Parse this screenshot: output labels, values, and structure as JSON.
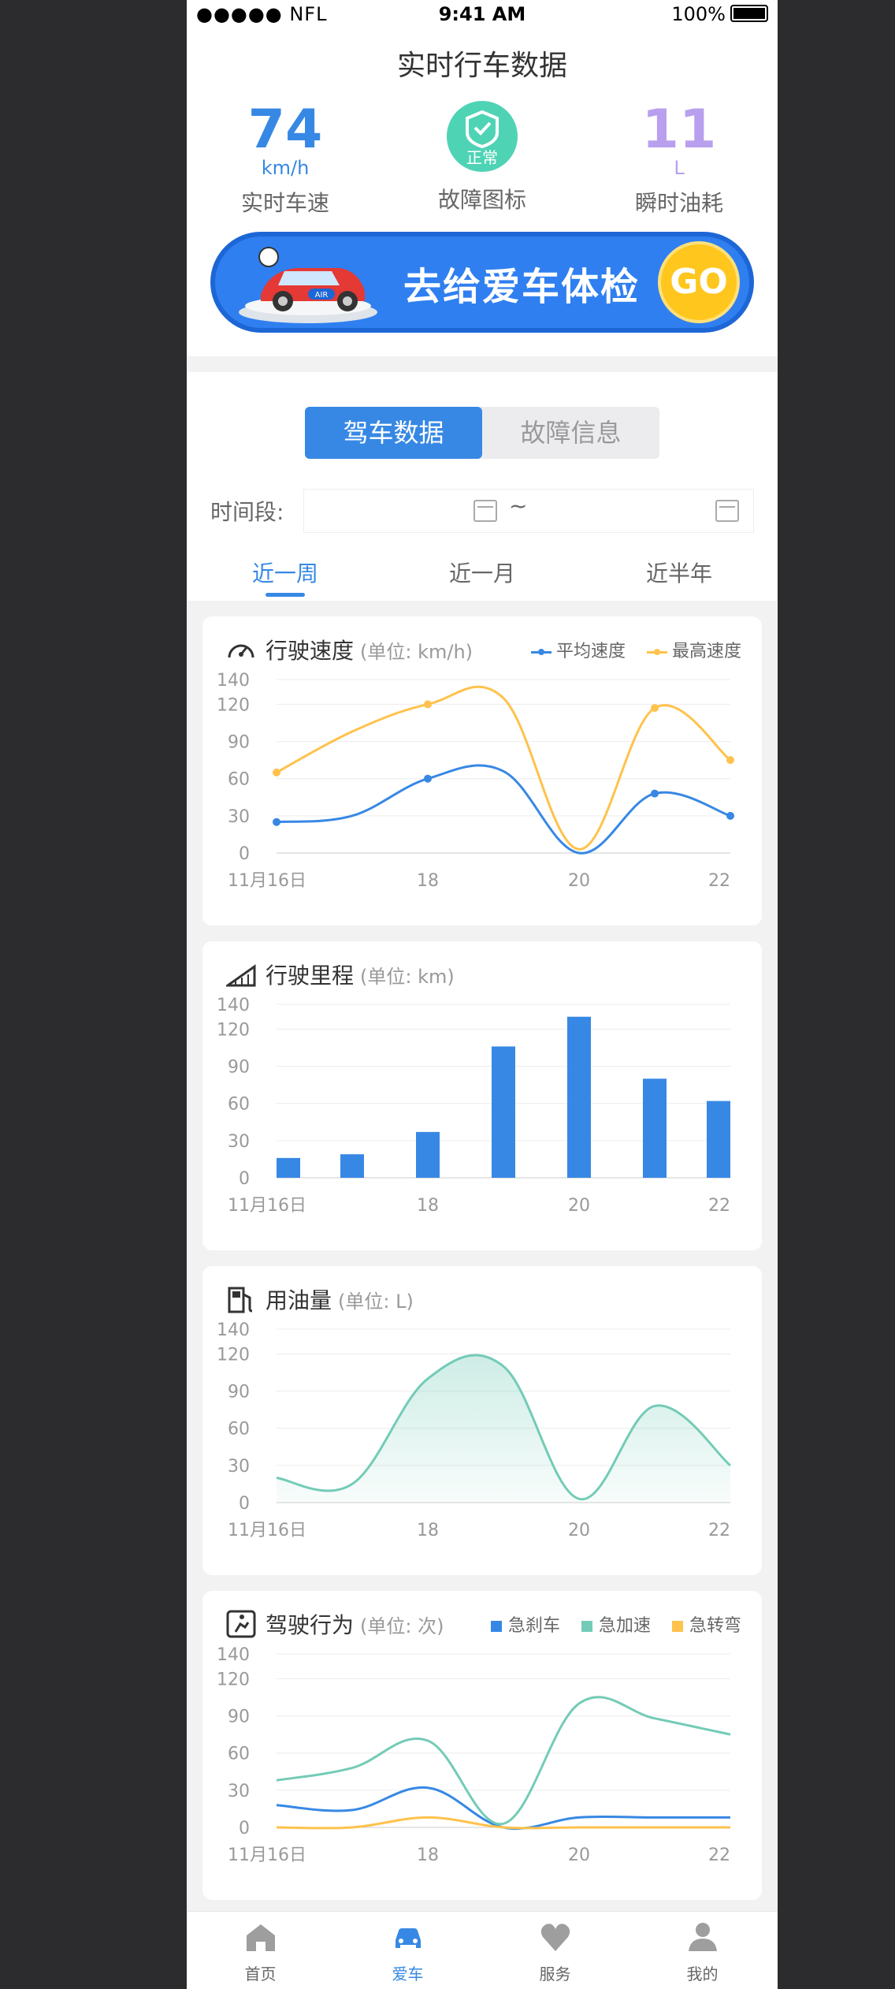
{
  "status": {
    "signal": "●●●●● NFL",
    "time": "9:41 AM",
    "battery": "100%"
  },
  "header": {
    "title": "实时行车数据"
  },
  "metrics": {
    "speed": {
      "value": "74",
      "unit": "km/h",
      "label": "实时车速"
    },
    "fault": {
      "badge": "正常",
      "label": "故障图标"
    },
    "fuel": {
      "value": "11",
      "unit": "L",
      "label": "瞬时油耗"
    }
  },
  "banner": {
    "text": "去给爱车体检",
    "go": "GO",
    "car_plate": "AIR"
  },
  "segment": {
    "active": "驾车数据",
    "inactive": "故障信息"
  },
  "range": {
    "label": "时间段:",
    "separator": "~"
  },
  "tabs": [
    "近一周",
    "近一月",
    "近半年"
  ],
  "colors": {
    "accent": "#3788e4",
    "orange": "#ffc24c",
    "teal": "#73cbb7",
    "fuel": "#b9a0ee"
  },
  "cards": {
    "speed": {
      "title": "行驶速度",
      "unit": "(单位: km/h)",
      "legend": [
        "平均速度",
        "最高速度"
      ]
    },
    "mileage": {
      "title": "行驶里程",
      "unit": "(单位: km)"
    },
    "fuel": {
      "title": "用油量",
      "unit": "(单位: L)"
    },
    "behavior": {
      "title": "驾驶行为",
      "unit": "(单位: 次)",
      "legend": [
        "急刹车",
        "急加速",
        "急转弯"
      ]
    }
  },
  "chart_data": [
    {
      "type": "line",
      "title": "行驶速度",
      "ylim": [
        0,
        140
      ],
      "yticks": [
        140,
        120,
        90,
        60,
        30,
        0
      ],
      "x": [
        16,
        17,
        18,
        19,
        20,
        21,
        22
      ],
      "xtick_labels": [
        "11月16日",
        "18",
        "20",
        "22"
      ],
      "xticks": [
        16,
        18,
        20,
        22
      ],
      "series": [
        {
          "name": "平均速度",
          "color": "#3788e4",
          "values": [
            25,
            30,
            60,
            66,
            0,
            48,
            30
          ],
          "markers": [
            16,
            18,
            21,
            22
          ]
        },
        {
          "name": "最高速度",
          "color": "#ffc24c",
          "values": [
            65,
            98,
            120,
            125,
            3,
            117,
            75
          ],
          "markers": [
            16,
            18,
            21,
            22
          ]
        }
      ]
    },
    {
      "type": "bar",
      "title": "行驶里程",
      "ylim": [
        0,
        140
      ],
      "yticks": [
        140,
        120,
        90,
        60,
        30,
        0
      ],
      "x": [
        16,
        17,
        18,
        19,
        20,
        21,
        22
      ],
      "xtick_labels": [
        "11月16日",
        "18",
        "20",
        "22"
      ],
      "xticks": [
        16,
        18,
        20,
        22
      ],
      "series": [
        {
          "color": "#3788e4",
          "values": [
            16,
            19,
            37,
            106,
            130,
            80,
            62
          ]
        }
      ]
    },
    {
      "type": "area",
      "title": "用油量",
      "ylim": [
        0,
        140
      ],
      "yticks": [
        140,
        120,
        90,
        60,
        30,
        0
      ],
      "x": [
        16,
        17,
        18,
        19,
        20,
        21,
        22
      ],
      "xtick_labels": [
        "11月16日",
        "18",
        "20",
        "22"
      ],
      "xticks": [
        16,
        18,
        20,
        22
      ],
      "series": [
        {
          "color": "#73cbb7",
          "values": [
            20,
            15,
            100,
            110,
            3,
            78,
            30
          ]
        }
      ]
    },
    {
      "type": "line",
      "title": "驾驶行为",
      "ylim": [
        0,
        140
      ],
      "yticks": [
        140,
        120,
        90,
        60,
        30,
        0
      ],
      "x": [
        16,
        17,
        18,
        19,
        20,
        21,
        22
      ],
      "xtick_labels": [
        "11月16日",
        "18",
        "20",
        "22"
      ],
      "xticks": [
        16,
        18,
        20,
        22
      ],
      "series": [
        {
          "name": "急刹车",
          "color": "#3788e4",
          "values": [
            18,
            14,
            32,
            0,
            8,
            8,
            8
          ]
        },
        {
          "name": "急加速",
          "color": "#73cbb7",
          "values": [
            38,
            48,
            70,
            3,
            100,
            88,
            75
          ]
        },
        {
          "name": "急转弯",
          "color": "#ffc24c",
          "values": [
            0,
            0,
            8,
            0,
            0,
            0,
            0
          ]
        }
      ]
    }
  ],
  "nav": [
    {
      "label": "首页",
      "icon": "home-icon"
    },
    {
      "label": "爱车",
      "icon": "car-icon"
    },
    {
      "label": "服务",
      "icon": "heart-icon"
    },
    {
      "label": "我的",
      "icon": "user-icon"
    }
  ]
}
